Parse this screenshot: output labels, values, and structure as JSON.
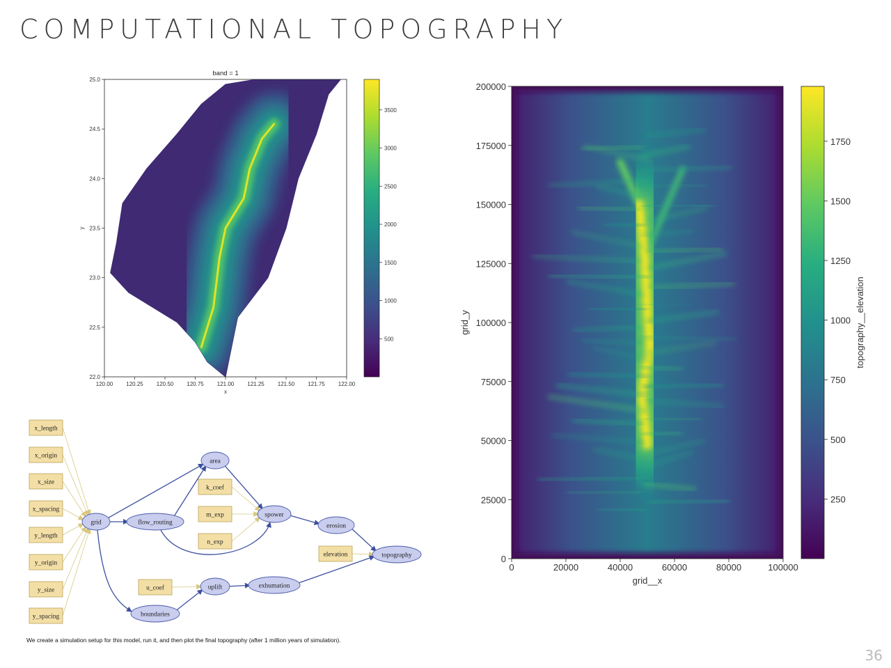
{
  "slide": {
    "title": "COMPUTATIONAL TOPOGRAPHY",
    "caption": "We create a simulation setup for this model, run it, and then plot the final topography (after 1 million years of simulation).",
    "page_number": "36"
  },
  "colors": {
    "viridis": [
      "#440154",
      "#472d7b",
      "#3b528b",
      "#2c728e",
      "#21918c",
      "#28ae80",
      "#5ec962",
      "#addc30",
      "#fde725"
    ],
    "edge": "#3b4f9e",
    "input_edge": "#d8c880",
    "input_fill": "#f3dfa6",
    "input_stroke": "#b9a35a",
    "process_fill": "#c9cdee",
    "process_stroke": "#4a5aa8"
  },
  "chart_data": [
    {
      "type": "heatmap",
      "title": "band = 1",
      "xlabel": "x",
      "ylabel": "y",
      "xlim": [
        120.0,
        122.0
      ],
      "ylim": [
        22.0,
        25.0
      ],
      "x_ticks": [
        120.0,
        120.25,
        120.5,
        120.75,
        121.0,
        121.25,
        121.5,
        121.75,
        122.0
      ],
      "x_tick_labels": [
        "120.00",
        "120.25",
        "120.50",
        "120.75",
        "121.00",
        "121.25",
        "121.50",
        "121.75",
        "122.00"
      ],
      "y_ticks": [
        22.0,
        22.5,
        23.0,
        23.5,
        24.0,
        24.5,
        25.0
      ],
      "y_tick_labels": [
        "22.0",
        "22.5",
        "23.0",
        "23.5",
        "24.0",
        "24.5",
        "25.0"
      ],
      "colorbar": {
        "range": [
          0,
          3900
        ],
        "ticks": [
          500,
          1000,
          1500,
          2000,
          2500,
          3000,
          3500
        ],
        "tick_labels": [
          "500",
          "1000",
          "1500",
          "2000",
          "2500",
          "3000",
          "3500"
        ],
        "colormap": "viridis"
      },
      "coastline_lonlat": [
        [
          121.0,
          22.0
        ],
        [
          120.85,
          22.15
        ],
        [
          120.75,
          22.35
        ],
        [
          120.6,
          22.55
        ],
        [
          120.4,
          22.7
        ],
        [
          120.2,
          22.85
        ],
        [
          120.05,
          23.05
        ],
        [
          120.1,
          23.35
        ],
        [
          120.15,
          23.75
        ],
        [
          120.35,
          24.1
        ],
        [
          120.6,
          24.45
        ],
        [
          120.8,
          24.75
        ],
        [
          121.0,
          24.95
        ],
        [
          121.5,
          25.05
        ],
        [
          121.95,
          25.0
        ],
        [
          121.85,
          24.85
        ],
        [
          121.75,
          24.45
        ],
        [
          121.6,
          24.0
        ],
        [
          121.5,
          23.5
        ],
        [
          121.35,
          23.0
        ],
        [
          121.1,
          22.6
        ],
        [
          121.05,
          22.3
        ],
        [
          121.0,
          22.0
        ]
      ],
      "ridge_lonlat": [
        [
          120.8,
          22.3
        ],
        [
          120.9,
          22.7
        ],
        [
          120.95,
          23.2
        ],
        [
          121.0,
          23.5
        ],
        [
          121.15,
          23.8
        ],
        [
          121.2,
          24.1
        ],
        [
          121.3,
          24.4
        ],
        [
          121.4,
          24.55
        ]
      ],
      "peak_elevation": 3900
    },
    {
      "type": "heatmap",
      "xlabel": "grid__x",
      "ylabel": "grid_y",
      "xlim": [
        0,
        100000
      ],
      "ylim": [
        0,
        200000
      ],
      "x_ticks": [
        0,
        20000,
        40000,
        60000,
        80000,
        100000
      ],
      "x_tick_labels": [
        "0",
        "20000",
        "40000",
        "60000",
        "80000",
        "100000"
      ],
      "y_ticks": [
        0,
        25000,
        50000,
        75000,
        100000,
        125000,
        150000,
        175000,
        200000
      ],
      "y_tick_labels": [
        "0",
        "25000",
        "50000",
        "75000",
        "100000",
        "125000",
        "150000",
        "175000",
        "200000"
      ],
      "colorbar": {
        "label": "topography__elevation",
        "range": [
          0,
          1980
        ],
        "ticks": [
          250,
          500,
          750,
          1000,
          1250,
          1500,
          1750
        ],
        "tick_labels": [
          "250",
          "500",
          "750",
          "1000",
          "1250",
          "1500",
          "1750"
        ],
        "colormap": "viridis"
      },
      "ridge_xy": [
        [
          50000,
          48000
        ],
        [
          48000,
          70000
        ],
        [
          51000,
          90000
        ],
        [
          50000,
          105000
        ],
        [
          49000,
          128000
        ],
        [
          47000,
          150000
        ],
        [
          40000,
          168000
        ],
        [
          63000,
          165000
        ]
      ],
      "peak_elevation": 1980
    }
  ],
  "diagram": {
    "nodes": [
      {
        "id": "x_length",
        "label": "x_length",
        "kind": "input"
      },
      {
        "id": "x_origin",
        "label": "x_origin",
        "kind": "input"
      },
      {
        "id": "x_size",
        "label": "x_size",
        "kind": "input"
      },
      {
        "id": "x_spacing",
        "label": "x_spacing",
        "kind": "input"
      },
      {
        "id": "y_length",
        "label": "y_length",
        "kind": "input"
      },
      {
        "id": "y_origin",
        "label": "y_origin",
        "kind": "input"
      },
      {
        "id": "y_size",
        "label": "y_size",
        "kind": "input"
      },
      {
        "id": "y_spacing",
        "label": "y_spacing",
        "kind": "input"
      },
      {
        "id": "grid",
        "label": "grid",
        "kind": "process"
      },
      {
        "id": "flow_routing",
        "label": "flow_routing",
        "kind": "process"
      },
      {
        "id": "area",
        "label": "area",
        "kind": "process"
      },
      {
        "id": "k_coef",
        "label": "k_coef",
        "kind": "input"
      },
      {
        "id": "m_exp",
        "label": "m_exp",
        "kind": "input"
      },
      {
        "id": "n_exp",
        "label": "n_exp",
        "kind": "input"
      },
      {
        "id": "spower",
        "label": "spower",
        "kind": "process"
      },
      {
        "id": "erosion",
        "label": "erosion",
        "kind": "process"
      },
      {
        "id": "elevation",
        "label": "elevation",
        "kind": "input"
      },
      {
        "id": "topography",
        "label": "topography",
        "kind": "process"
      },
      {
        "id": "u_coef",
        "label": "u_coef",
        "kind": "input"
      },
      {
        "id": "uplift",
        "label": "uplift",
        "kind": "process"
      },
      {
        "id": "exhumation",
        "label": "exhumation",
        "kind": "process"
      },
      {
        "id": "boundaries",
        "label": "boundaries",
        "kind": "process"
      }
    ],
    "edges": [
      [
        "x_length",
        "grid",
        "input"
      ],
      [
        "x_origin",
        "grid",
        "input"
      ],
      [
        "x_size",
        "grid",
        "input"
      ],
      [
        "x_spacing",
        "grid",
        "input"
      ],
      [
        "y_length",
        "grid",
        "input"
      ],
      [
        "y_origin",
        "grid",
        "input"
      ],
      [
        "y_size",
        "grid",
        "input"
      ],
      [
        "y_spacing",
        "grid",
        "input"
      ],
      [
        "grid",
        "flow_routing",
        "flow"
      ],
      [
        "grid",
        "area",
        "flow"
      ],
      [
        "grid",
        "boundaries",
        "flow"
      ],
      [
        "flow_routing",
        "area",
        "flow"
      ],
      [
        "flow_routing",
        "spower",
        "flow"
      ],
      [
        "area",
        "spower",
        "flow"
      ],
      [
        "k_coef",
        "spower",
        "input"
      ],
      [
        "m_exp",
        "spower",
        "input"
      ],
      [
        "n_exp",
        "spower",
        "input"
      ],
      [
        "spower",
        "erosion",
        "flow"
      ],
      [
        "erosion",
        "topography",
        "flow"
      ],
      [
        "elevation",
        "topography",
        "input"
      ],
      [
        "u_coef",
        "uplift",
        "input"
      ],
      [
        "boundaries",
        "uplift",
        "flow"
      ],
      [
        "uplift",
        "exhumation",
        "flow"
      ],
      [
        "exhumation",
        "topography",
        "flow"
      ]
    ]
  }
}
